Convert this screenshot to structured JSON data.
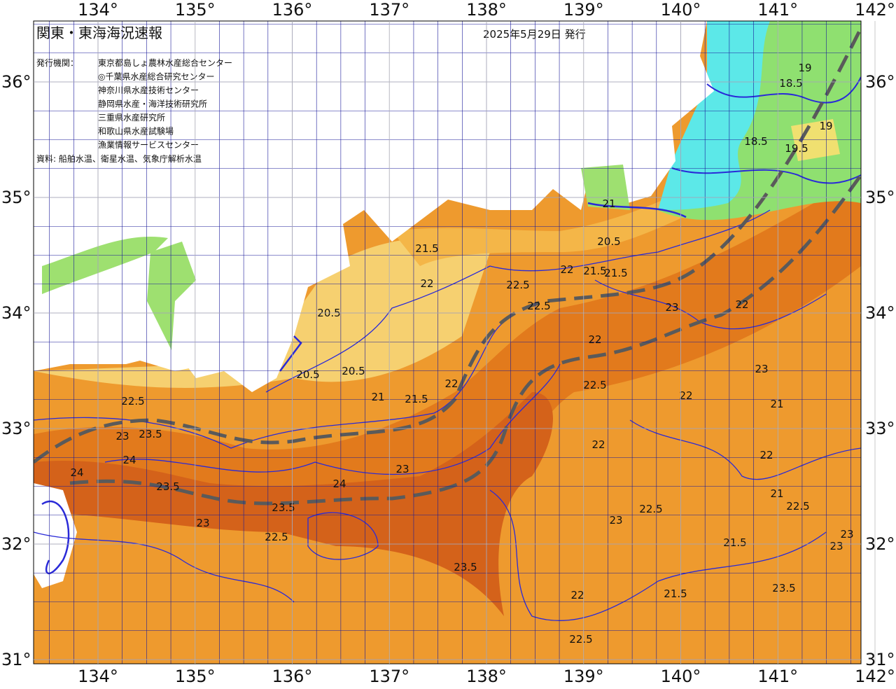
{
  "header": {
    "title": "関東・東海海況速報",
    "date": "2025年5月29日 発行"
  },
  "issuers": {
    "label": "発行機関：",
    "items": [
      "東京都島しょ農林水産総合センター",
      "◎千葉県水産総合研究センター",
      "神奈川県水産技術センター",
      "静岡県水産・海洋技術研究所",
      "三重県水産研究所",
      "和歌山県水産試験場",
      "漁業情報サービスセンター"
    ]
  },
  "source": "資料: 船舶水温、衛星水温、気象庁解析水温",
  "lon_ticks": [
    {
      "value": 134,
      "label": "134°"
    },
    {
      "value": 135,
      "label": "135°"
    },
    {
      "value": 136,
      "label": "136°"
    },
    {
      "value": 137,
      "label": "137°"
    },
    {
      "value": 138,
      "label": "138°"
    },
    {
      "value": 139,
      "label": "139°"
    },
    {
      "value": 140,
      "label": "140°"
    },
    {
      "value": 141,
      "label": "141°"
    },
    {
      "value": 142,
      "label": "142°"
    }
  ],
  "lat_ticks": [
    {
      "value": 36,
      "label": "36°"
    },
    {
      "value": 35,
      "label": "35°"
    },
    {
      "value": 34,
      "label": "34°"
    },
    {
      "value": 33,
      "label": "33°"
    },
    {
      "value": 32,
      "label": "32°"
    },
    {
      "value": 31,
      "label": "31°"
    }
  ],
  "contour_labels": [
    "21.5",
    "22",
    "22.5",
    "21",
    "20.5",
    "21.5",
    "22",
    "22.5",
    "23",
    "22",
    "20.5",
    "20.5",
    "20.5",
    "21",
    "21.5",
    "22",
    "22.5",
    "23",
    "23.5",
    "24",
    "24",
    "23.5",
    "23",
    "22.5",
    "23.5",
    "24",
    "23",
    "23.5",
    "22",
    "22.5",
    "21.5",
    "22",
    "23",
    "22.5",
    "22",
    "21.5",
    "21",
    "22.5",
    "23",
    "23.5",
    "23",
    "22",
    "22.5",
    "21.5",
    "19",
    "18.5",
    "19.5",
    "18.5",
    "19",
    "21",
    "22",
    "23"
  ]
}
